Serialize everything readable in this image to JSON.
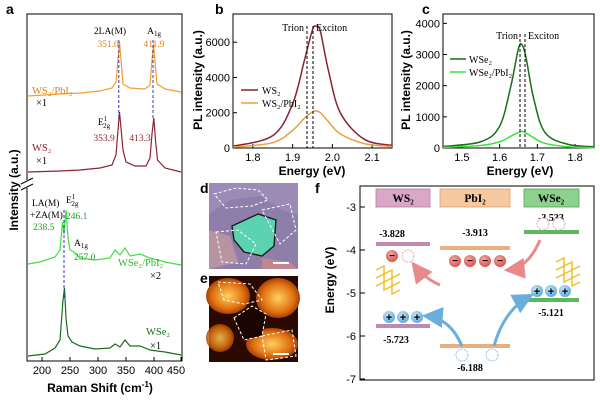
{
  "panel_a": {
    "letter": "a",
    "xlabel": "Raman Shift (cm",
    "xlabel_sup": "-1",
    "xlabel_end": ")",
    "ylabel": "Intensity (a.u.)",
    "xticks": [
      "200",
      "250",
      "300",
      "350",
      "400",
      "450"
    ],
    "ws2_pbi2_label": "WS₂/PbI₂",
    "ws2_pbi2_scale": "×1",
    "ws2_label": "WS₂",
    "ws2_scale": "×1",
    "wse2_pbi2_label": "WSe₂/PbI₂",
    "wse2_pbi2_scale": "×2",
    "wse2_label": "WSe₂",
    "wse2_scale": "×1",
    "ann_2la": "2LA(M)",
    "ann_2la_val": "351.0",
    "ann_a1g": "A",
    "ann_a1g_sub": "1g",
    "ann_a1g_val": "411.9",
    "ann_e12g": "E",
    "ann_e12g_sup": "1",
    "ann_e12g_sub": "2g",
    "ann_e12g_val": "353.9",
    "ann_a1g_ws2_val": "413.3",
    "ann_la_za": "LA(M)",
    "ann_la_za2": "+ZA(M)",
    "ann_la_za_val": "238.5",
    "ann_e12g_wse2_val": "246.1",
    "ann_a1g_wse2_val": "257.0",
    "colors": {
      "ws2_pbi2": "#f0a030",
      "ws2": "#8b2330",
      "wse2_pbi2": "#3ee03e",
      "wse2": "#1a6e1a",
      "dashed": "#3333cc"
    }
  },
  "panel_b": {
    "letter": "b",
    "ylabel": "PL intensity (a.u.)",
    "xlabel": "Energy (eV)",
    "xticks": [
      "1.8",
      "1.9",
      "2.0",
      "2.1"
    ],
    "yticks": [
      "0",
      "2000",
      "4000",
      "6000"
    ],
    "trion": "Trion",
    "exciton": "Exciton",
    "legend": [
      "WS₂",
      "WS₂/PbI₂"
    ],
    "colors": [
      "#8b2330",
      "#e8a040"
    ]
  },
  "panel_c": {
    "letter": "c",
    "ylabel": "PL intensity (a.u.)",
    "xlabel": "Energy (eV)",
    "xticks": [
      "1.5",
      "1.6",
      "1.7",
      "1.8"
    ],
    "yticks": [
      "0",
      "1000",
      "2000",
      "3000",
      "4000"
    ],
    "trion": "Trion",
    "exciton": "Exciton",
    "legend": [
      "WSe₂",
      "WSe₂/PbI₂"
    ],
    "colors": [
      "#1a6e1a",
      "#3ee03e"
    ]
  },
  "panel_d": {
    "letter": "d"
  },
  "panel_e": {
    "letter": "e"
  },
  "panel_f": {
    "letter": "f",
    "ylabel": "Energy (eV)",
    "yticks": [
      "-3",
      "-4",
      "-5",
      "-6",
      "-7"
    ],
    "headers": [
      "WS₂",
      "PbI₂",
      "WSe₂"
    ],
    "header_colors": [
      "#d9a8c8",
      "#f6c9a0",
      "#8ed08e"
    ],
    "levels": {
      "ws2_cb": "-3.828",
      "pbi2_cb": "-3.913",
      "wse2_cb": "-3.533",
      "wse2_vb": "-5.121",
      "ws2_vb": "-5.723",
      "pbi2_vb": "-6.188"
    },
    "minus": "−",
    "plus": "+"
  },
  "chart_data": [
    {
      "type": "line",
      "title": "",
      "xlabel": "Energy (eV)",
      "ylabel": "PL intensity (a.u.)",
      "xlim": [
        1.75,
        2.15
      ],
      "ylim": [
        0,
        7600
      ],
      "series": [
        {
          "name": "WS₂",
          "x": [
            1.75,
            1.85,
            1.9,
            1.93,
            1.95,
            1.96,
            1.97,
            1.99,
            2.02,
            2.08,
            2.15
          ],
          "y": [
            100,
            700,
            2500,
            5000,
            6700,
            6900,
            6600,
            4400,
            2000,
            500,
            150
          ]
        },
        {
          "name": "WS₂/PbI₂",
          "x": [
            1.75,
            1.85,
            1.9,
            1.93,
            1.95,
            1.96,
            1.97,
            1.99,
            2.02,
            2.08,
            2.15
          ],
          "y": [
            50,
            300,
            1000,
            1700,
            2050,
            2100,
            2000,
            1500,
            800,
            250,
            80
          ]
        }
      ]
    },
    {
      "type": "line",
      "title": "",
      "xlabel": "Energy (eV)",
      "ylabel": "PL intensity (a.u.)",
      "xlim": [
        1.45,
        1.85
      ],
      "ylim": [
        0,
        4300
      ],
      "series": [
        {
          "name": "WSe₂",
          "x": [
            1.45,
            1.55,
            1.6,
            1.63,
            1.65,
            1.66,
            1.67,
            1.69,
            1.72,
            1.78,
            1.85
          ],
          "y": [
            50,
            200,
            700,
            2000,
            3200,
            3300,
            2900,
            1600,
            500,
            120,
            40
          ]
        },
        {
          "name": "WSe₂/PbI₂",
          "x": [
            1.45,
            1.55,
            1.6,
            1.63,
            1.65,
            1.66,
            1.67,
            1.69,
            1.72,
            1.78,
            1.85
          ],
          "y": [
            20,
            80,
            200,
            380,
            500,
            530,
            480,
            330,
            150,
            40,
            10
          ]
        }
      ]
    }
  ]
}
